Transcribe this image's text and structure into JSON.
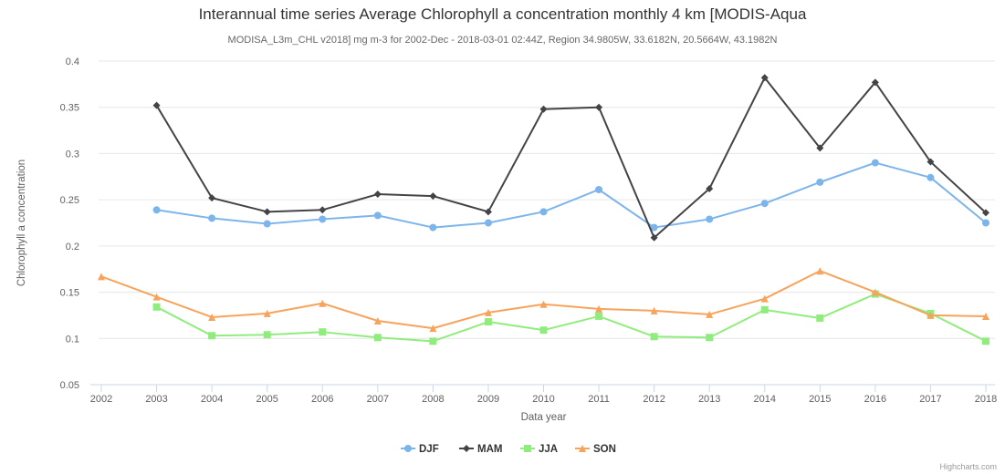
{
  "chart_data": {
    "type": "line",
    "title": "Interannual time series Average Chlorophyll a concentration monthly 4 km [MODIS-Aqua",
    "subtitle": "MODISA_L3m_CHL v2018] mg m-3 for 2002-Dec - 2018-03-01 02:44Z, Region 34.9805W, 33.6182N, 20.5664W, 43.1982N",
    "xlabel": "Data year",
    "ylabel": "Chlorophyll a concentration",
    "categories": [
      "2002",
      "2003",
      "2004",
      "2005",
      "2006",
      "2007",
      "2008",
      "2009",
      "2010",
      "2011",
      "2012",
      "2013",
      "2014",
      "2015",
      "2016",
      "2017",
      "2018"
    ],
    "yticks": [
      "0.05",
      "0.1",
      "0.15",
      "0.2",
      "0.25",
      "0.3",
      "0.35",
      "0.4"
    ],
    "ylim": [
      0.05,
      0.4
    ],
    "grid": true,
    "legend_position": "bottom-center",
    "series": [
      {
        "name": "DJF",
        "color": "#7cb5ec",
        "marker": "circle",
        "values": [
          null,
          0.239,
          0.23,
          0.224,
          0.229,
          0.233,
          0.22,
          0.225,
          0.237,
          0.261,
          0.22,
          0.229,
          0.246,
          0.269,
          0.29,
          0.274,
          0.225
        ]
      },
      {
        "name": "MAM",
        "color": "#434348",
        "marker": "diamond",
        "values": [
          null,
          0.352,
          0.252,
          0.237,
          0.239,
          0.256,
          0.254,
          0.237,
          0.348,
          0.35,
          0.209,
          0.262,
          0.382,
          0.306,
          0.377,
          0.291,
          0.236
        ]
      },
      {
        "name": "JJA",
        "color": "#90ed7d",
        "marker": "square",
        "values": [
          null,
          0.134,
          0.103,
          0.104,
          0.107,
          0.101,
          0.097,
          0.118,
          0.109,
          0.124,
          0.102,
          0.101,
          0.131,
          0.122,
          0.148,
          0.127,
          0.097
        ]
      },
      {
        "name": "SON",
        "color": "#f7a35c",
        "marker": "triangle",
        "values": [
          0.167,
          0.145,
          0.123,
          0.127,
          0.138,
          0.119,
          0.111,
          0.128,
          0.137,
          0.132,
          0.13,
          0.126,
          0.143,
          0.173,
          0.15,
          0.125,
          0.124
        ]
      }
    ]
  },
  "credits": "Highcharts.com"
}
